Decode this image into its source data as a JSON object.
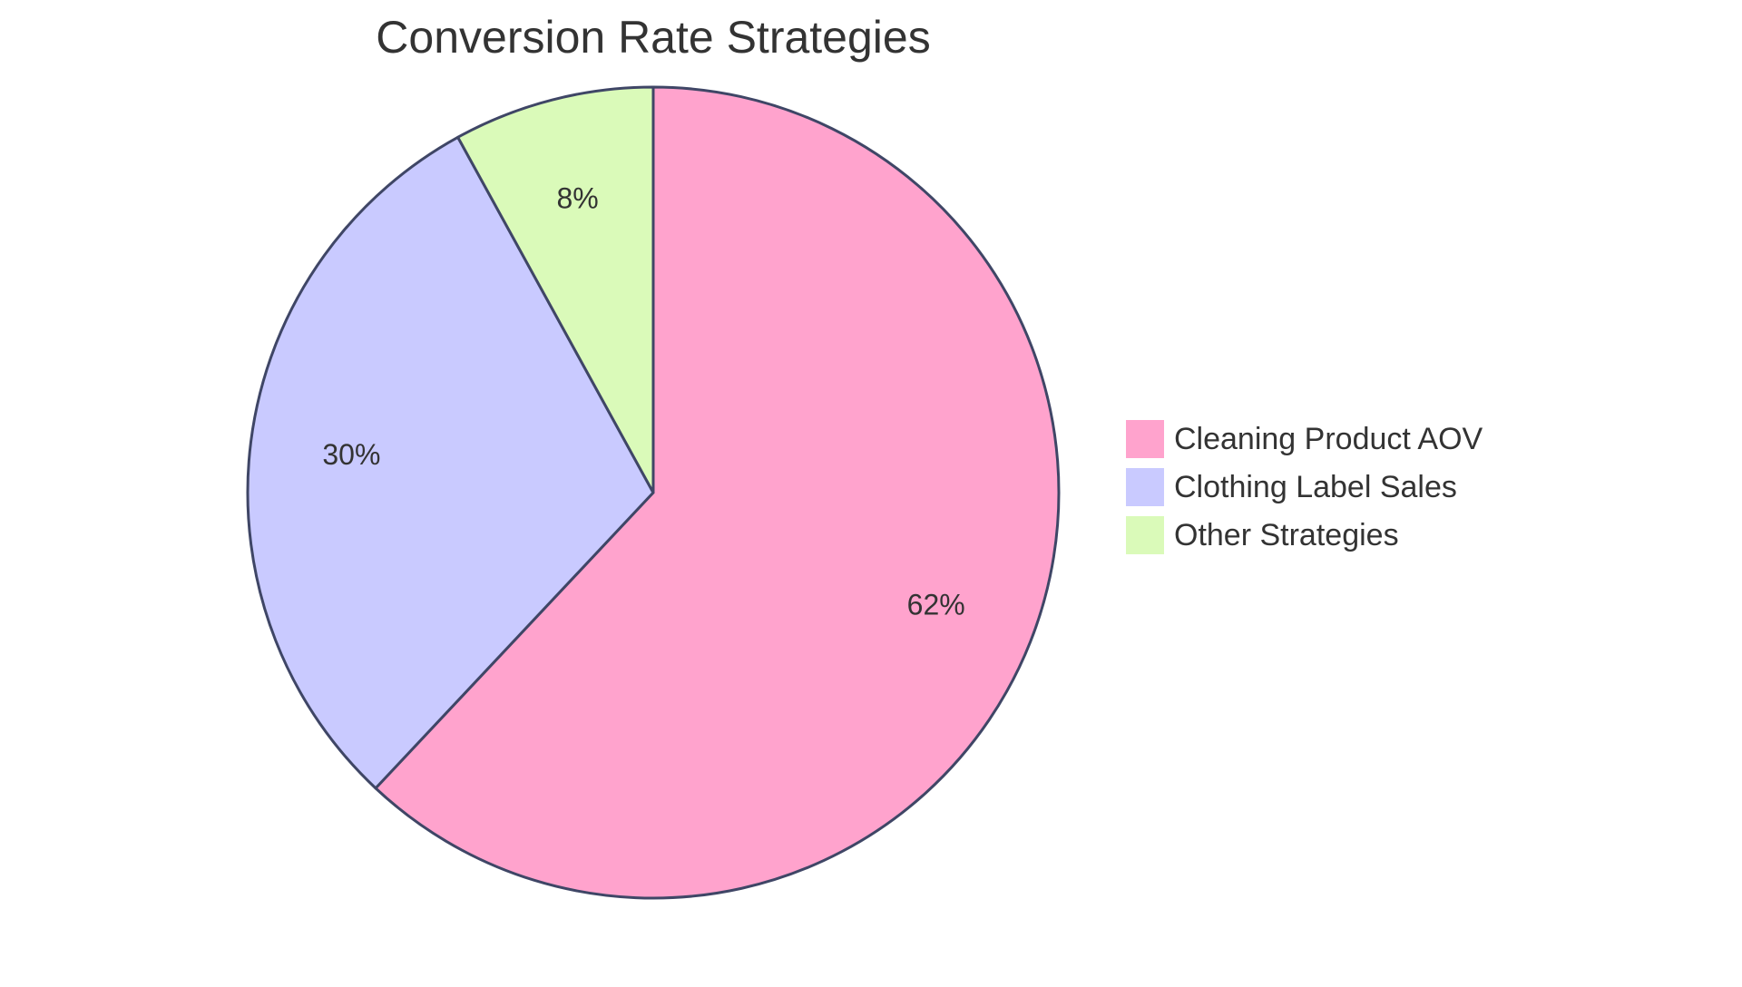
{
  "chart_data": {
    "type": "pie",
    "title": "Conversion Rate Strategies",
    "slices": [
      {
        "label": "Cleaning Product AOV",
        "value": 62,
        "display": "62%",
        "color": "#ffa3cd"
      },
      {
        "label": "Clothing Label Sales",
        "value": 30,
        "display": "30%",
        "color": "#c9caff"
      },
      {
        "label": "Other Strategies",
        "value": 8,
        "display": "8%",
        "color": "#dafab9"
      }
    ],
    "legend_position": "right",
    "stroke_color": "#3f4666"
  }
}
